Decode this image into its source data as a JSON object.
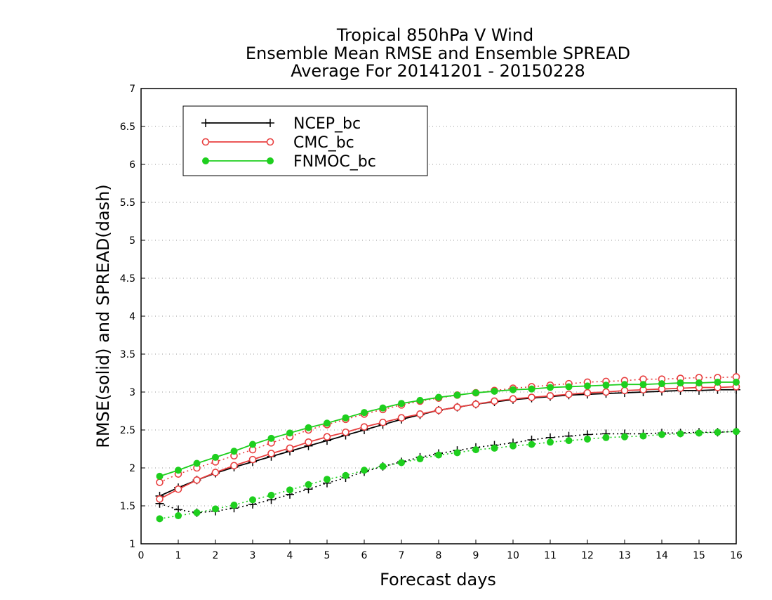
{
  "chart_data": {
    "type": "line",
    "title_lines": [
      "Tropical 850hPa V Wind",
      "Ensemble Mean RMSE and Ensemble SPREAD",
      "Average For 20141201 - 20150228"
    ],
    "xlabel": "Forecast days",
    "ylabel": "RMSE(solid) and SPREAD(dash)",
    "xlim": [
      0,
      16
    ],
    "ylim": [
      1,
      7
    ],
    "xticks": [
      0,
      1,
      2,
      3,
      4,
      5,
      6,
      7,
      8,
      9,
      10,
      11,
      12,
      13,
      14,
      15,
      16
    ],
    "yticks": [
      1,
      1.5,
      2,
      2.5,
      3,
      3.5,
      4,
      4.5,
      5,
      5.5,
      6,
      6.5,
      7
    ],
    "ytick_labels": [
      "1",
      "1.5",
      "2",
      "2.5",
      "3",
      "3.5",
      "4",
      "4.5",
      "5",
      "5.5",
      "6",
      "6.5",
      "7"
    ],
    "grid": "horizontal dotted",
    "legend_position": "top-left",
    "x": [
      0.5,
      1,
      1.5,
      2,
      2.5,
      3,
      3.5,
      4,
      4.5,
      5,
      5.5,
      6,
      6.5,
      7,
      7.5,
      8,
      8.5,
      9,
      9.5,
      10,
      10.5,
      11,
      11.5,
      12,
      12.5,
      13,
      13.5,
      14,
      14.5,
      15,
      15.5,
      16
    ],
    "series": [
      {
        "name": "NCEP_bc",
        "color": "#000000",
        "marker": "plus",
        "rmse": [
          1.63,
          1.74,
          1.84,
          1.93,
          2.01,
          2.08,
          2.15,
          2.22,
          2.29,
          2.36,
          2.43,
          2.5,
          2.57,
          2.64,
          2.7,
          2.76,
          2.8,
          2.84,
          2.87,
          2.9,
          2.92,
          2.94,
          2.96,
          2.97,
          2.98,
          2.99,
          3.0,
          3.01,
          3.02,
          3.02,
          3.03,
          3.03
        ],
        "spread": [
          1.53,
          1.45,
          1.41,
          1.43,
          1.47,
          1.52,
          1.58,
          1.65,
          1.72,
          1.8,
          1.87,
          1.95,
          2.02,
          2.08,
          2.14,
          2.19,
          2.23,
          2.27,
          2.3,
          2.33,
          2.37,
          2.4,
          2.42,
          2.44,
          2.45,
          2.45,
          2.45,
          2.46,
          2.46,
          2.47,
          2.47,
          2.48
        ]
      },
      {
        "name": "CMC_bc",
        "color": "#e83f3f",
        "marker": "open-circle",
        "rmse": [
          1.59,
          1.72,
          1.84,
          1.94,
          2.03,
          2.11,
          2.19,
          2.26,
          2.34,
          2.41,
          2.47,
          2.54,
          2.6,
          2.66,
          2.71,
          2.76,
          2.8,
          2.84,
          2.88,
          2.91,
          2.93,
          2.95,
          2.97,
          2.99,
          3.0,
          3.02,
          3.03,
          3.04,
          3.05,
          3.06,
          3.06,
          3.07
        ],
        "spread": [
          1.81,
          1.92,
          2.0,
          2.08,
          2.16,
          2.24,
          2.33,
          2.41,
          2.5,
          2.57,
          2.64,
          2.71,
          2.77,
          2.83,
          2.88,
          2.92,
          2.96,
          2.99,
          3.02,
          3.05,
          3.07,
          3.09,
          3.11,
          3.13,
          3.14,
          3.15,
          3.17,
          3.17,
          3.18,
          3.19,
          3.19,
          3.2
        ]
      },
      {
        "name": "FNMOC_bc",
        "color": "#1ecf1e",
        "marker": "filled-circle",
        "rmse": [
          1.89,
          1.97,
          2.06,
          2.14,
          2.22,
          2.31,
          2.39,
          2.46,
          2.53,
          2.59,
          2.66,
          2.73,
          2.79,
          2.85,
          2.89,
          2.93,
          2.96,
          2.99,
          3.01,
          3.03,
          3.04,
          3.06,
          3.07,
          3.08,
          3.09,
          3.1,
          3.1,
          3.11,
          3.12,
          3.12,
          3.13,
          3.13
        ],
        "spread": [
          1.33,
          1.37,
          1.41,
          1.46,
          1.51,
          1.58,
          1.64,
          1.71,
          1.78,
          1.85,
          1.9,
          1.97,
          2.02,
          2.07,
          2.12,
          2.17,
          2.2,
          2.24,
          2.26,
          2.29,
          2.31,
          2.34,
          2.36,
          2.38,
          2.4,
          2.41,
          2.42,
          2.44,
          2.45,
          2.46,
          2.47,
          2.48
        ]
      }
    ]
  }
}
